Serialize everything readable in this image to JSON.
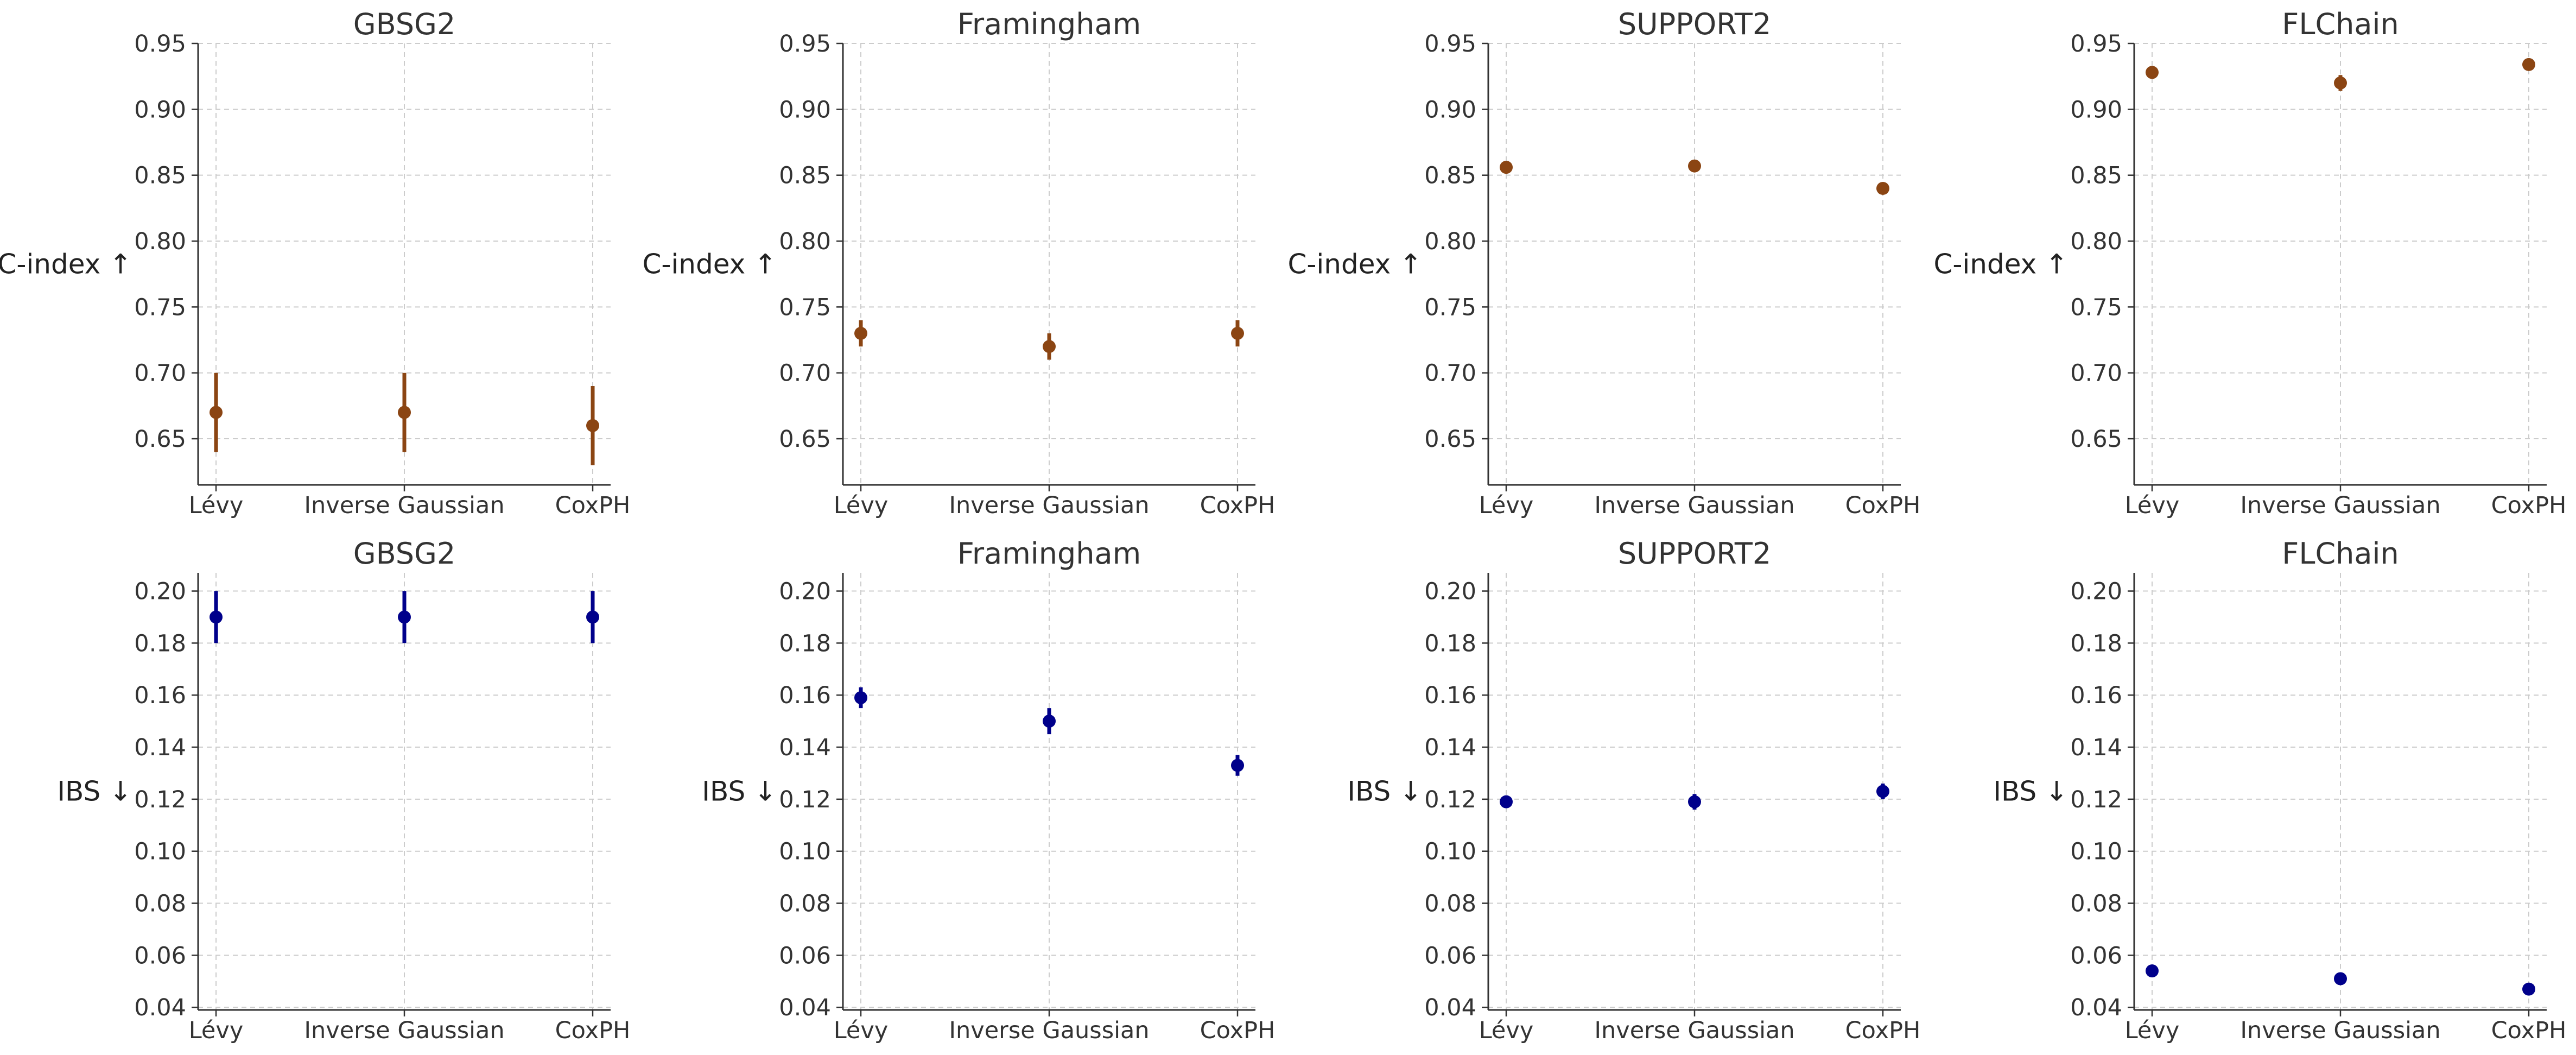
{
  "colors": {
    "cindex": "#8b4513",
    "ibs": "#00008b"
  },
  "chart_data": [
    {
      "type": "scatter",
      "metric": "cindex",
      "title": "GBSG2",
      "ylabel": "C-index ↑",
      "categories": [
        "Lévy",
        "Inverse Gaussian",
        "CoxPH"
      ],
      "values": [
        0.67,
        0.67,
        0.66
      ],
      "errors": [
        0.03,
        0.03,
        0.03
      ],
      "ylim": [
        0.615,
        0.95
      ],
      "yticks": [
        "0.65",
        "0.70",
        "0.75",
        "0.80",
        "0.85",
        "0.90",
        "0.95"
      ],
      "grid": true
    },
    {
      "type": "scatter",
      "metric": "cindex",
      "title": "Framingham",
      "ylabel": "C-index ↑",
      "categories": [
        "Lévy",
        "Inverse Gaussian",
        "CoxPH"
      ],
      "values": [
        0.73,
        0.72,
        0.73
      ],
      "errors": [
        0.01,
        0.01,
        0.01
      ],
      "ylim": [
        0.615,
        0.95
      ],
      "yticks": [
        "0.65",
        "0.70",
        "0.75",
        "0.80",
        "0.85",
        "0.90",
        "0.95"
      ],
      "grid": true
    },
    {
      "type": "scatter",
      "metric": "cindex",
      "title": "SUPPORT2",
      "ylabel": "C-index ↑",
      "categories": [
        "Lévy",
        "Inverse Gaussian",
        "CoxPH"
      ],
      "values": [
        0.856,
        0.857,
        0.84
      ],
      "errors": [
        0.003,
        0.003,
        0.003
      ],
      "ylim": [
        0.615,
        0.95
      ],
      "yticks": [
        "0.65",
        "0.70",
        "0.75",
        "0.80",
        "0.85",
        "0.90",
        "0.95"
      ],
      "grid": true
    },
    {
      "type": "scatter",
      "metric": "cindex",
      "title": "FLChain",
      "ylabel": "C-index ↑",
      "categories": [
        "Lévy",
        "Inverse Gaussian",
        "CoxPH"
      ],
      "values": [
        0.928,
        0.92,
        0.934
      ],
      "errors": [
        0.003,
        0.006,
        0.003
      ],
      "ylim": [
        0.615,
        0.95
      ],
      "yticks": [
        "0.65",
        "0.70",
        "0.75",
        "0.80",
        "0.85",
        "0.90",
        "0.95"
      ],
      "grid": true
    },
    {
      "type": "scatter",
      "metric": "ibs",
      "title": "GBSG2",
      "ylabel": "IBS ↓",
      "categories": [
        "Lévy",
        "Inverse Gaussian",
        "CoxPH"
      ],
      "values": [
        0.19,
        0.19,
        0.19
      ],
      "errors": [
        0.01,
        0.01,
        0.01
      ],
      "ylim": [
        0.039,
        0.207
      ],
      "yticks": [
        "0.04",
        "0.06",
        "0.08",
        "0.10",
        "0.12",
        "0.14",
        "0.16",
        "0.18",
        "0.20"
      ],
      "grid": true
    },
    {
      "type": "scatter",
      "metric": "ibs",
      "title": "Framingham",
      "ylabel": "IBS ↓",
      "categories": [
        "Lévy",
        "Inverse Gaussian",
        "CoxPH"
      ],
      "values": [
        0.159,
        0.15,
        0.133
      ],
      "errors": [
        0.004,
        0.005,
        0.004
      ],
      "ylim": [
        0.039,
        0.207
      ],
      "yticks": [
        "0.04",
        "0.06",
        "0.08",
        "0.10",
        "0.12",
        "0.14",
        "0.16",
        "0.18",
        "0.20"
      ],
      "grid": true
    },
    {
      "type": "scatter",
      "metric": "ibs",
      "title": "SUPPORT2",
      "ylabel": "IBS ↓",
      "categories": [
        "Lévy",
        "Inverse Gaussian",
        "CoxPH"
      ],
      "values": [
        0.119,
        0.119,
        0.123
      ],
      "errors": [
        0.002,
        0.003,
        0.003
      ],
      "ylim": [
        0.039,
        0.207
      ],
      "yticks": [
        "0.04",
        "0.06",
        "0.08",
        "0.10",
        "0.12",
        "0.14",
        "0.16",
        "0.18",
        "0.20"
      ],
      "grid": true
    },
    {
      "type": "scatter",
      "metric": "ibs",
      "title": "FLChain",
      "ylabel": "IBS ↓",
      "categories": [
        "Lévy",
        "Inverse Gaussian",
        "CoxPH"
      ],
      "values": [
        0.054,
        0.051,
        0.047
      ],
      "errors": [
        0.001,
        0.001,
        0.001
      ],
      "ylim": [
        0.039,
        0.207
      ],
      "yticks": [
        "0.04",
        "0.06",
        "0.08",
        "0.10",
        "0.12",
        "0.14",
        "0.16",
        "0.18",
        "0.20"
      ],
      "grid": true
    }
  ]
}
